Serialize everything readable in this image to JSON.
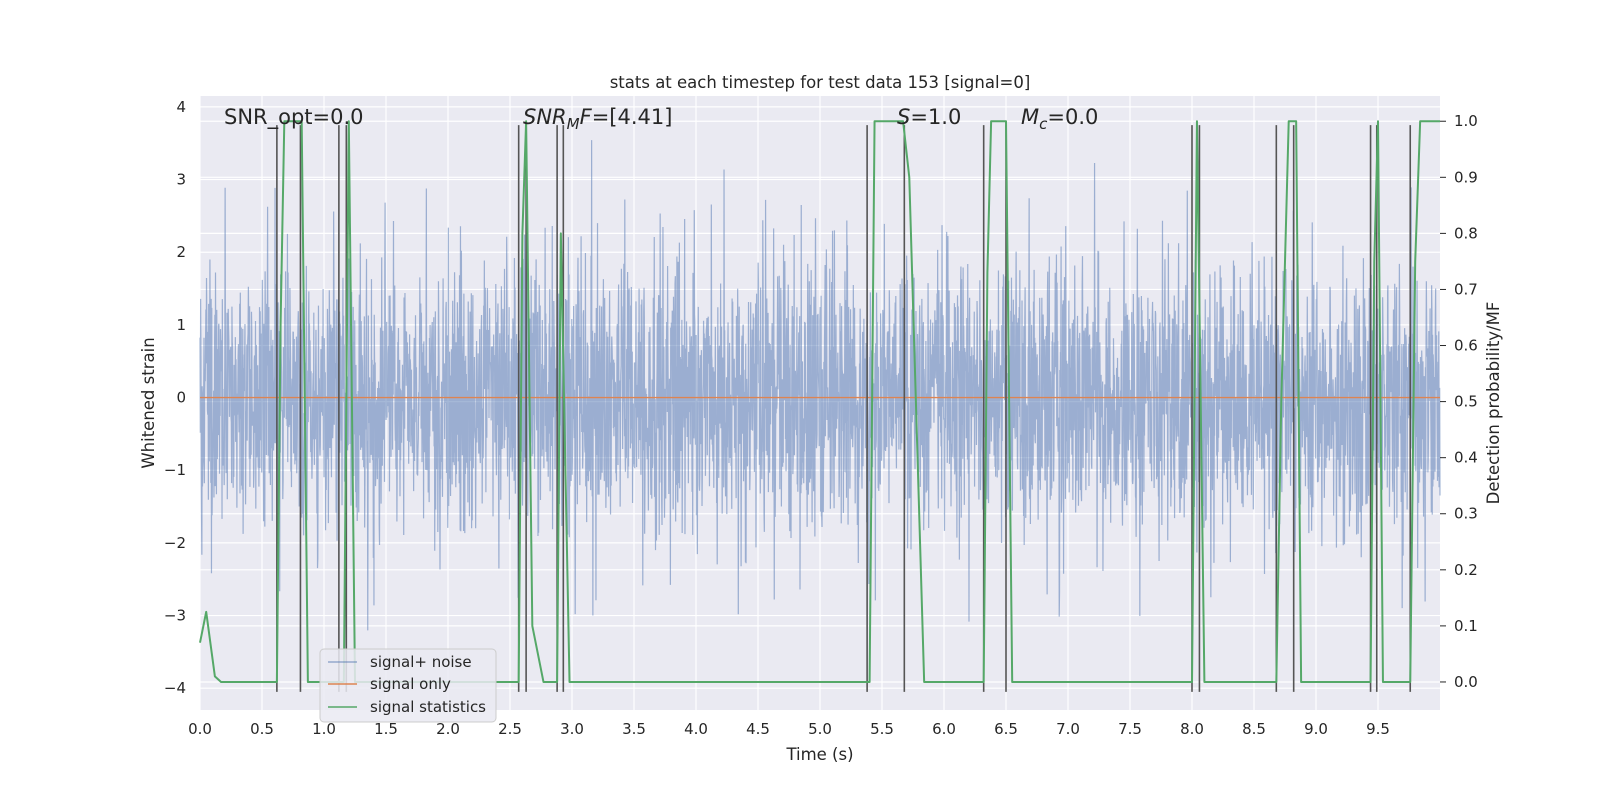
{
  "chart_data": {
    "type": "line",
    "title": "stats at each timestep for test data 153 [signal=0]",
    "xlabel": "Time (s)",
    "ylabel": "Whitened strain",
    "ylabel_right": "Detection probability/MF",
    "xlim": [
      0.0,
      10.0
    ],
    "ylim": [
      -4.3,
      4.15
    ],
    "ylim_right": [
      -0.05,
      1.045
    ],
    "xticks": [
      "0.0",
      "0.5",
      "1.0",
      "1.5",
      "2.0",
      "2.5",
      "3.0",
      "3.5",
      "4.0",
      "4.5",
      "5.0",
      "5.5",
      "6.0",
      "6.5",
      "7.0",
      "7.5",
      "8.0",
      "8.5",
      "9.0",
      "9.5"
    ],
    "yticks": [
      "−4",
      "−3",
      "−2",
      "−1",
      "0",
      "1",
      "2",
      "3",
      "4"
    ],
    "yticks_right": [
      "0.0",
      "0.1",
      "0.2",
      "0.3",
      "0.4",
      "0.5",
      "0.6",
      "0.7",
      "0.8",
      "0.9",
      "1.0"
    ],
    "annotations": {
      "snr_opt": {
        "prefix": "SNR_opt=0.0"
      },
      "snr_mf": {
        "base": "SNR",
        "sub": "M",
        "mid": "F",
        "suffix": "=[4.41]"
      },
      "s": {
        "var": "S",
        "suffix": "=1.0"
      },
      "mc": {
        "var": "M",
        "sub": "c",
        "suffix": "=0.0"
      }
    },
    "legend": {
      "position": "lower-left",
      "entries": [
        "signal+ noise",
        "signal only",
        "signal statistics"
      ]
    },
    "grid": true,
    "colors": {
      "background": "#eaeaf2",
      "grid": "#ffffff",
      "noise": "#4c72b0",
      "signal_only": "#dd8452",
      "statistics": "#55a868",
      "vlines": "#555555"
    },
    "series": [
      {
        "name": "signal+ noise",
        "kind": "noise",
        "description_values": "approx. Gaussian noise, std ~0.95, spanning roughly -4 to 4"
      },
      {
        "name": "signal only",
        "kind": "constant",
        "value": 0.0
      },
      {
        "name": "signal statistics",
        "axis": "right",
        "x": [
          0.0,
          0.05,
          0.12,
          0.17,
          0.62,
          0.65,
          0.68,
          0.82,
          0.87,
          1.16,
          1.2,
          1.25,
          2.57,
          2.6,
          2.63,
          2.68,
          2.77,
          2.88,
          2.91,
          2.98,
          5.4,
          5.44,
          5.67,
          5.72,
          5.84,
          6.32,
          6.35,
          6.38,
          6.5,
          6.55,
          8.0,
          8.04,
          8.1,
          8.14,
          8.68,
          8.72,
          8.78,
          8.84,
          8.88,
          9.44,
          9.47,
          9.5,
          9.54,
          9.76,
          9.8,
          9.84,
          10.0
        ],
        "y": [
          0.07,
          0.125,
          0.01,
          0.0,
          0.0,
          0.64,
          1.0,
          1.0,
          0.0,
          0.0,
          1.0,
          0.0,
          0.0,
          0.8,
          1.0,
          0.1,
          0.0,
          0.0,
          0.8,
          0.0,
          0.0,
          1.0,
          1.0,
          0.9,
          0.0,
          0.0,
          0.73,
          1.0,
          1.0,
          0.0,
          0.0,
          1.0,
          0.0,
          0.0,
          0.0,
          0.5,
          1.0,
          1.0,
          0.0,
          0.0,
          0.75,
          1.0,
          0.0,
          0.0,
          0.75,
          1.0,
          1.0
        ]
      }
    ],
    "vertical_lines": {
      "x": [
        0.62,
        0.81,
        1.12,
        1.18,
        2.57,
        2.63,
        2.88,
        2.93,
        5.38,
        5.68,
        6.32,
        6.5,
        8.0,
        8.06,
        8.68,
        8.82,
        9.44,
        9.49,
        9.76
      ],
      "y_range": [
        -4.05,
        3.75
      ]
    }
  }
}
